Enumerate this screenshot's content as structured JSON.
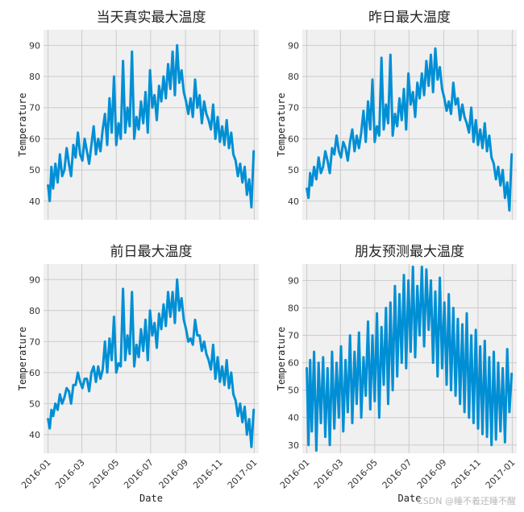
{
  "watermark": "CSDN @睡不着还睡不醒",
  "chart_data": [
    {
      "type": "line",
      "title": "当天真实最大温度",
      "xlabel": "",
      "ylabel": "Temperature",
      "yticks": [
        40,
        50,
        60,
        70,
        80,
        90
      ],
      "ylim": [
        34,
        95
      ],
      "xlim": [
        "2015-12-24",
        "2017-01-09"
      ],
      "xticks": [],
      "color": "#008fd5",
      "grid": true,
      "series": [
        {
          "x": [
            "2016-01-01",
            "2016-01-04",
            "2016-01-07",
            "2016-01-10",
            "2016-01-14",
            "2016-01-18",
            "2016-01-22",
            "2016-01-26",
            "2016-01-30",
            "2016-02-03",
            "2016-02-07",
            "2016-02-11",
            "2016-02-15",
            "2016-02-19",
            "2016-02-23",
            "2016-02-27",
            "2016-03-02",
            "2016-03-06",
            "2016-03-10",
            "2016-03-14",
            "2016-03-18",
            "2016-03-22",
            "2016-03-26",
            "2016-03-30",
            "2016-04-03",
            "2016-04-07",
            "2016-04-11",
            "2016-04-15",
            "2016-04-19",
            "2016-04-23",
            "2016-04-27",
            "2016-05-01",
            "2016-05-05",
            "2016-05-09",
            "2016-05-13",
            "2016-05-17",
            "2016-05-21",
            "2016-05-25",
            "2016-05-29",
            "2016-06-02",
            "2016-06-06",
            "2016-06-10",
            "2016-06-14",
            "2016-06-18",
            "2016-06-22",
            "2016-06-26",
            "2016-06-30",
            "2016-07-04",
            "2016-07-08",
            "2016-07-12",
            "2016-07-16",
            "2016-07-20",
            "2016-07-24",
            "2016-07-28",
            "2016-08-01",
            "2016-08-05",
            "2016-08-09",
            "2016-08-13",
            "2016-08-17",
            "2016-08-21",
            "2016-08-25",
            "2016-08-29",
            "2016-09-02",
            "2016-09-06",
            "2016-09-10",
            "2016-09-14",
            "2016-09-18",
            "2016-09-22",
            "2016-09-26",
            "2016-09-30",
            "2016-10-04",
            "2016-10-08",
            "2016-10-12",
            "2016-10-16",
            "2016-10-20",
            "2016-10-24",
            "2016-10-28",
            "2016-11-01",
            "2016-11-05",
            "2016-11-09",
            "2016-11-13",
            "2016-11-17",
            "2016-11-21",
            "2016-11-25",
            "2016-11-29",
            "2016-12-03",
            "2016-12-07",
            "2016-12-11",
            "2016-12-15",
            "2016-12-19",
            "2016-12-23",
            "2016-12-27",
            "2016-12-31"
          ],
          "values": [
            45,
            40,
            51,
            44,
            52,
            46,
            55,
            48,
            50,
            57,
            52,
            48,
            58,
            54,
            62,
            55,
            53,
            60,
            56,
            52,
            58,
            64,
            55,
            60,
            56,
            63,
            68,
            58,
            73,
            62,
            80,
            58,
            65,
            60,
            85,
            62,
            70,
            64,
            88,
            60,
            67,
            63,
            72,
            65,
            75,
            62,
            82,
            70,
            74,
            66,
            77,
            72,
            80,
            73,
            84,
            76,
            88,
            74,
            90,
            78,
            82,
            75,
            72,
            68,
            73,
            67,
            79,
            70,
            74,
            65,
            72,
            68,
            66,
            63,
            71,
            60,
            67,
            59,
            64,
            58,
            66,
            57,
            62,
            55,
            53,
            48,
            52,
            46,
            51,
            42,
            47,
            38,
            56
          ]
        }
      ]
    },
    {
      "type": "line",
      "title": "昨日最大温度",
      "xlabel": "",
      "ylabel": "Temperature",
      "yticks": [
        40,
        50,
        60,
        70,
        80,
        90
      ],
      "ylim": [
        34,
        95
      ],
      "xlim": [
        "2015-12-24",
        "2017-01-09"
      ],
      "xticks": [],
      "color": "#008fd5",
      "grid": true,
      "series": [
        {
          "x": [
            "2016-01-01",
            "2016-01-04",
            "2016-01-07",
            "2016-01-10",
            "2016-01-14",
            "2016-01-18",
            "2016-01-22",
            "2016-01-26",
            "2016-01-30",
            "2016-02-03",
            "2016-02-07",
            "2016-02-11",
            "2016-02-15",
            "2016-02-19",
            "2016-02-23",
            "2016-02-27",
            "2016-03-02",
            "2016-03-06",
            "2016-03-10",
            "2016-03-14",
            "2016-03-18",
            "2016-03-22",
            "2016-03-26",
            "2016-03-30",
            "2016-04-03",
            "2016-04-07",
            "2016-04-11",
            "2016-04-15",
            "2016-04-19",
            "2016-04-23",
            "2016-04-27",
            "2016-05-01",
            "2016-05-05",
            "2016-05-09",
            "2016-05-13",
            "2016-05-17",
            "2016-05-21",
            "2016-05-25",
            "2016-05-29",
            "2016-06-02",
            "2016-06-06",
            "2016-06-10",
            "2016-06-14",
            "2016-06-18",
            "2016-06-22",
            "2016-06-26",
            "2016-06-30",
            "2016-07-04",
            "2016-07-08",
            "2016-07-12",
            "2016-07-16",
            "2016-07-20",
            "2016-07-24",
            "2016-07-28",
            "2016-08-01",
            "2016-08-05",
            "2016-08-09",
            "2016-08-13",
            "2016-08-17",
            "2016-08-21",
            "2016-08-25",
            "2016-08-29",
            "2016-09-02",
            "2016-09-06",
            "2016-09-10",
            "2016-09-14",
            "2016-09-18",
            "2016-09-22",
            "2016-09-26",
            "2016-09-30",
            "2016-10-04",
            "2016-10-08",
            "2016-10-12",
            "2016-10-16",
            "2016-10-20",
            "2016-10-24",
            "2016-10-28",
            "2016-11-01",
            "2016-11-05",
            "2016-11-09",
            "2016-11-13",
            "2016-11-17",
            "2016-11-21",
            "2016-11-25",
            "2016-11-29",
            "2016-12-03",
            "2016-12-07",
            "2016-12-11",
            "2016-12-15",
            "2016-12-19",
            "2016-12-23",
            "2016-12-27",
            "2016-12-31"
          ],
          "values": [
            44,
            41,
            49,
            45,
            51,
            47,
            54,
            49,
            51,
            56,
            53,
            49,
            57,
            55,
            61,
            56,
            54,
            59,
            57,
            53,
            59,
            63,
            56,
            61,
            57,
            62,
            69,
            59,
            72,
            63,
            79,
            59,
            64,
            61,
            86,
            63,
            71,
            65,
            87,
            61,
            68,
            64,
            73,
            66,
            76,
            63,
            81,
            71,
            75,
            67,
            78,
            73,
            81,
            74,
            85,
            77,
            87,
            75,
            89,
            79,
            83,
            76,
            73,
            69,
            72,
            68,
            78,
            71,
            73,
            66,
            71,
            67,
            65,
            62,
            70,
            59,
            66,
            58,
            63,
            57,
            65,
            56,
            61,
            54,
            52,
            47,
            51,
            45,
            50,
            41,
            46,
            37,
            55
          ]
        }
      ]
    },
    {
      "type": "line",
      "title": "前日最大温度",
      "xlabel": "Date",
      "ylabel": "Temperature",
      "yticks": [
        40,
        50,
        60,
        70,
        80,
        90
      ],
      "ylim": [
        34,
        95
      ],
      "xlim": [
        "2015-12-24",
        "2017-01-09"
      ],
      "xticks": [
        "2016-01",
        "2016-03",
        "2016-05",
        "2016-07",
        "2016-09",
        "2016-11",
        "2017-01"
      ],
      "color": "#008fd5",
      "grid": true,
      "series": [
        {
          "x": [
            "2016-01-01",
            "2016-01-04",
            "2016-01-07",
            "2016-01-10",
            "2016-01-14",
            "2016-01-18",
            "2016-01-22",
            "2016-01-26",
            "2016-01-30",
            "2016-02-03",
            "2016-02-07",
            "2016-02-11",
            "2016-02-15",
            "2016-02-19",
            "2016-02-23",
            "2016-02-27",
            "2016-03-02",
            "2016-03-06",
            "2016-03-10",
            "2016-03-14",
            "2016-03-18",
            "2016-03-22",
            "2016-03-26",
            "2016-03-30",
            "2016-04-03",
            "2016-04-07",
            "2016-04-11",
            "2016-04-15",
            "2016-04-19",
            "2016-04-23",
            "2016-04-27",
            "2016-05-01",
            "2016-05-05",
            "2016-05-09",
            "2016-05-13",
            "2016-05-17",
            "2016-05-21",
            "2016-05-25",
            "2016-05-29",
            "2016-06-02",
            "2016-06-06",
            "2016-06-10",
            "2016-06-14",
            "2016-06-18",
            "2016-06-22",
            "2016-06-26",
            "2016-06-30",
            "2016-07-04",
            "2016-07-08",
            "2016-07-12",
            "2016-07-16",
            "2016-07-20",
            "2016-07-24",
            "2016-07-28",
            "2016-08-01",
            "2016-08-05",
            "2016-08-09",
            "2016-08-13",
            "2016-08-17",
            "2016-08-21",
            "2016-08-25",
            "2016-08-29",
            "2016-09-02",
            "2016-09-06",
            "2016-09-10",
            "2016-09-14",
            "2016-09-18",
            "2016-09-22",
            "2016-09-26",
            "2016-09-30",
            "2016-10-04",
            "2016-10-08",
            "2016-10-12",
            "2016-10-16",
            "2016-10-20",
            "2016-10-24",
            "2016-10-28",
            "2016-11-01",
            "2016-11-05",
            "2016-11-09",
            "2016-11-13",
            "2016-11-17",
            "2016-11-21",
            "2016-11-25",
            "2016-11-29",
            "2016-12-03",
            "2016-12-07",
            "2016-12-11",
            "2016-12-15",
            "2016-12-19",
            "2016-12-23",
            "2016-12-27",
            "2016-12-31"
          ],
          "values": [
            45,
            42,
            48,
            46,
            50,
            48,
            53,
            50,
            52,
            55,
            54,
            50,
            56,
            56,
            60,
            57,
            55,
            58,
            58,
            54,
            60,
            62,
            57,
            62,
            58,
            61,
            70,
            60,
            71,
            64,
            78,
            60,
            63,
            62,
            87,
            64,
            72,
            66,
            86,
            62,
            69,
            65,
            74,
            67,
            77,
            64,
            80,
            72,
            76,
            68,
            79,
            74,
            82,
            75,
            86,
            78,
            86,
            76,
            90,
            80,
            84,
            77,
            74,
            70,
            71,
            69,
            77,
            72,
            72,
            67,
            70,
            66,
            64,
            61,
            69,
            58,
            65,
            57,
            62,
            56,
            64,
            55,
            60,
            53,
            51,
            46,
            50,
            44,
            49,
            40,
            45,
            36,
            48
          ]
        }
      ]
    },
    {
      "type": "line",
      "title": "朋友预测最大温度",
      "xlabel": "Date",
      "ylabel": "Temperature",
      "yticks": [
        30,
        40,
        50,
        60,
        70,
        80,
        90
      ],
      "ylim": [
        27,
        96
      ],
      "xlim": [
        "2015-12-24",
        "2017-01-09"
      ],
      "xticks": [
        "2016-01",
        "2016-03",
        "2016-05",
        "2016-07",
        "2016-09",
        "2016-11",
        "2017-01"
      ],
      "color": "#008fd5",
      "grid": true,
      "series": [
        {
          "x": [
            "2016-01-01",
            "2016-01-04",
            "2016-01-07",
            "2016-01-10",
            "2016-01-14",
            "2016-01-18",
            "2016-01-22",
            "2016-01-26",
            "2016-01-30",
            "2016-02-03",
            "2016-02-07",
            "2016-02-11",
            "2016-02-15",
            "2016-02-19",
            "2016-02-23",
            "2016-02-27",
            "2016-03-02",
            "2016-03-06",
            "2016-03-10",
            "2016-03-14",
            "2016-03-18",
            "2016-03-22",
            "2016-03-26",
            "2016-03-30",
            "2016-04-03",
            "2016-04-07",
            "2016-04-11",
            "2016-04-15",
            "2016-04-19",
            "2016-04-23",
            "2016-04-27",
            "2016-05-01",
            "2016-05-05",
            "2016-05-09",
            "2016-05-13",
            "2016-05-17",
            "2016-05-21",
            "2016-05-25",
            "2016-05-29",
            "2016-06-02",
            "2016-06-06",
            "2016-06-10",
            "2016-06-14",
            "2016-06-18",
            "2016-06-22",
            "2016-06-26",
            "2016-06-30",
            "2016-07-04",
            "2016-07-08",
            "2016-07-12",
            "2016-07-16",
            "2016-07-20",
            "2016-07-24",
            "2016-07-28",
            "2016-08-01",
            "2016-08-05",
            "2016-08-09",
            "2016-08-13",
            "2016-08-17",
            "2016-08-21",
            "2016-08-25",
            "2016-08-29",
            "2016-09-02",
            "2016-09-06",
            "2016-09-10",
            "2016-09-14",
            "2016-09-18",
            "2016-09-22",
            "2016-09-26",
            "2016-09-30",
            "2016-10-04",
            "2016-10-08",
            "2016-10-12",
            "2016-10-16",
            "2016-10-20",
            "2016-10-24",
            "2016-10-28",
            "2016-11-01",
            "2016-11-05",
            "2016-11-09",
            "2016-11-13",
            "2016-11-17",
            "2016-11-21",
            "2016-11-25",
            "2016-11-29",
            "2016-12-03",
            "2016-12-07",
            "2016-12-11",
            "2016-12-15",
            "2016-12-19",
            "2016-12-23",
            "2016-12-27",
            "2016-12-31"
          ],
          "values": [
            58,
            30,
            61,
            35,
            64,
            28,
            60,
            38,
            62,
            33,
            58,
            30,
            64,
            36,
            60,
            40,
            66,
            35,
            61,
            42,
            70,
            38,
            64,
            45,
            71,
            40,
            62,
            48,
            75,
            43,
            70,
            46,
            78,
            40,
            73,
            52,
            80,
            45,
            82,
            50,
            88,
            55,
            85,
            60,
            92,
            58,
            90,
            64,
            95,
            62,
            88,
            70,
            95,
            66,
            94,
            72,
            90,
            60,
            86,
            55,
            91,
            58,
            82,
            52,
            85,
            50,
            80,
            48,
            76,
            45,
            74,
            42,
            78,
            40,
            70,
            38,
            72,
            36,
            66,
            34,
            68,
            33,
            62,
            30,
            64,
            32,
            60,
            35,
            58,
            31,
            65,
            42,
            56
          ]
        }
      ]
    }
  ]
}
